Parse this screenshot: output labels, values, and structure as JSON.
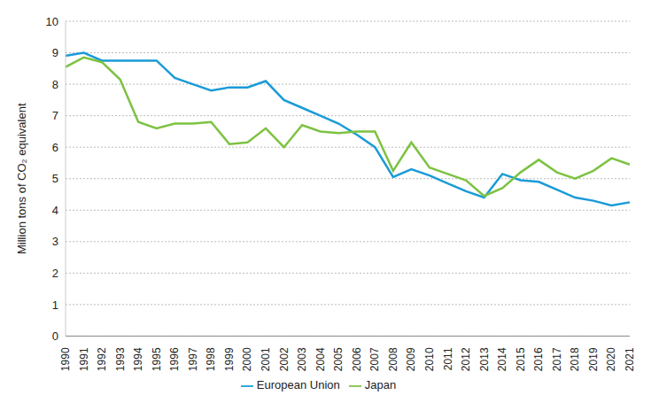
{
  "chart_data": {
    "type": "line",
    "y_label": "Million tons of CO₂ equivalent",
    "categories": [
      "1990",
      "1991",
      "1992",
      "1993",
      "1994",
      "1995",
      "1996",
      "1997",
      "1998",
      "1999",
      "2000",
      "2001",
      "2002",
      "2003",
      "2004",
      "2005",
      "2006",
      "2007",
      "2008",
      "2009",
      "2010",
      "2011",
      "2012",
      "2013",
      "2014",
      "2015",
      "2016",
      "2017",
      "2018",
      "2019",
      "2020",
      "2021"
    ],
    "series": [
      {
        "name": "European Union",
        "color": "#1a9bd7",
        "values": [
          8.9,
          9.0,
          8.75,
          8.75,
          8.75,
          8.75,
          8.2,
          8.0,
          7.8,
          7.9,
          7.9,
          8.1,
          7.5,
          7.25,
          7.0,
          6.75,
          6.4,
          6.0,
          5.05,
          5.3,
          5.1,
          4.85,
          4.6,
          4.4,
          5.15,
          4.95,
          4.9,
          4.65,
          4.4,
          4.3,
          4.15,
          4.25
        ]
      },
      {
        "name": "Japan",
        "color": "#7dc242",
        "values": [
          8.55,
          8.85,
          8.7,
          8.15,
          6.8,
          6.6,
          6.75,
          6.75,
          6.8,
          6.1,
          6.15,
          6.6,
          6.0,
          6.7,
          6.5,
          6.45,
          6.5,
          6.5,
          5.25,
          6.15,
          5.35,
          5.15,
          4.95,
          4.45,
          4.7,
          5.2,
          5.6,
          5.2,
          5.0,
          5.25,
          5.65,
          5.45
        ]
      }
    ],
    "ylim": [
      0,
      10
    ],
    "yticks": [
      0,
      1,
      2,
      3,
      4,
      5,
      6,
      7,
      8,
      9,
      10
    ],
    "grid": true,
    "legend": "bottom"
  }
}
